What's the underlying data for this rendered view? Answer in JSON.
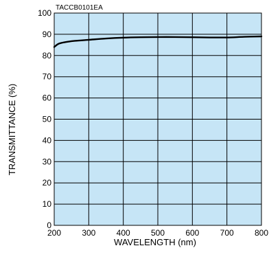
{
  "chart_code": "TACCB0101EA",
  "chart_data": {
    "type": "line",
    "title": "",
    "xlabel": "WAVELENGTH (nm)",
    "ylabel": "TRANSMITTANCE (%)",
    "xlim": [
      200,
      800
    ],
    "ylim": [
      0,
      100
    ],
    "xticks": [
      200,
      300,
      400,
      500,
      600,
      700,
      800
    ],
    "yticks": [
      0,
      10,
      20,
      30,
      40,
      50,
      60,
      70,
      80,
      90,
      100
    ],
    "grid": true,
    "legend": "none",
    "series": [
      {
        "x": [
          200,
          210,
          220,
          240,
          260,
          300,
          350,
          400,
          450,
          500,
          550,
          600,
          650,
          700,
          750,
          800
        ],
        "y": [
          84,
          85.3,
          85.9,
          86.5,
          86.9,
          87.4,
          88.0,
          88.4,
          88.6,
          88.7,
          88.7,
          88.6,
          88.5,
          88.5,
          88.8,
          89.0
        ]
      }
    ],
    "colors": {
      "plot_background": "#c6e5f6",
      "grid": "#000000",
      "line": "#000000"
    }
  }
}
